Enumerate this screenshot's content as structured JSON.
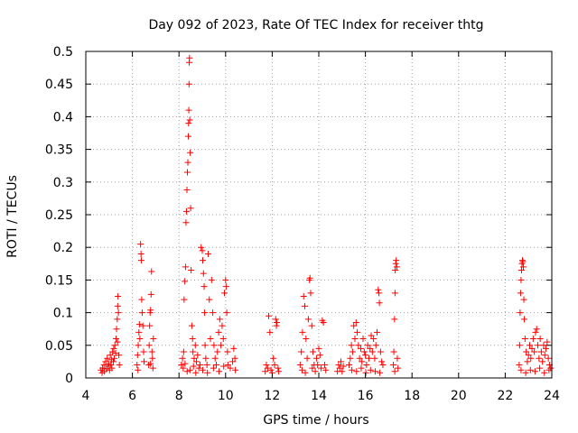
{
  "chart_data": {
    "type": "scatter",
    "title": "Day 092 of 2023, Rate Of TEC Index for receiver thtg",
    "xlabel": "GPS time / hours",
    "ylabel": "ROTI / TECUs",
    "xlim": [
      4,
      24
    ],
    "ylim": [
      0,
      0.5
    ],
    "xticks": [
      4,
      6,
      8,
      10,
      12,
      14,
      16,
      18,
      20,
      22,
      24
    ],
    "xtick_labels": [
      "4",
      "6",
      "8",
      "10",
      "12",
      "14",
      "16",
      "18",
      "20",
      "22",
      "24"
    ],
    "yticks": [
      0,
      0.05,
      0.1,
      0.15,
      0.2,
      0.25,
      0.3,
      0.35,
      0.4,
      0.45,
      0.5
    ],
    "ytick_labels": [
      "0",
      "0.05",
      "0.1",
      "0.15",
      "0.2",
      "0.25",
      "0.3",
      "0.35",
      "0.4",
      "0.45",
      "0.5"
    ],
    "grid": true,
    "marker": "+",
    "color": "#ff0000",
    "series": [
      {
        "name": "ROTI",
        "points": [
          [
            4.65,
            0.012
          ],
          [
            4.7,
            0.008
          ],
          [
            4.72,
            0.015
          ],
          [
            4.78,
            0.02
          ],
          [
            4.8,
            0.01
          ],
          [
            4.85,
            0.025
          ],
          [
            4.88,
            0.014
          ],
          [
            4.92,
            0.03
          ],
          [
            4.95,
            0.018
          ],
          [
            4.98,
            0.022
          ],
          [
            5.02,
            0.012
          ],
          [
            5.05,
            0.035
          ],
          [
            5.08,
            0.02
          ],
          [
            5.1,
            0.028
          ],
          [
            5.12,
            0.015
          ],
          [
            5.15,
            0.04
          ],
          [
            5.18,
            0.025
          ],
          [
            5.2,
            0.045
          ],
          [
            5.22,
            0.03
          ],
          [
            5.25,
            0.05
          ],
          [
            5.28,
            0.038
          ],
          [
            5.3,
            0.06
          ],
          [
            5.32,
            0.075
          ],
          [
            5.35,
            0.09
          ],
          [
            5.37,
            0.11
          ],
          [
            5.38,
            0.125
          ],
          [
            5.4,
            0.1
          ],
          [
            5.42,
            0.035
          ],
          [
            5.44,
            0.02
          ],
          [
            5.36,
            0.055
          ],
          [
            6.2,
            0.02
          ],
          [
            6.22,
            0.035
          ],
          [
            6.25,
            0.05
          ],
          [
            6.28,
            0.07
          ],
          [
            6.3,
            0.082
          ],
          [
            6.32,
            0.06
          ],
          [
            6.35,
            0.205
          ],
          [
            6.37,
            0.19
          ],
          [
            6.38,
            0.18
          ],
          [
            6.4,
            0.12
          ],
          [
            6.42,
            0.1
          ],
          [
            6.45,
            0.08
          ],
          [
            6.48,
            0.04
          ],
          [
            6.5,
            0.025
          ],
          [
            6.24,
            0.012
          ],
          [
            6.7,
            0.02
          ],
          [
            6.72,
            0.05
          ],
          [
            6.74,
            0.08
          ],
          [
            6.76,
            0.1
          ],
          [
            6.78,
            0.104
          ],
          [
            6.8,
            0.128
          ],
          [
            6.82,
            0.163
          ],
          [
            6.84,
            0.04
          ],
          [
            6.86,
            0.03
          ],
          [
            6.88,
            0.015
          ],
          [
            6.9,
            0.06
          ],
          [
            6.78,
            0.022
          ],
          [
            8.1,
            0.02
          ],
          [
            8.15,
            0.03
          ],
          [
            8.2,
            0.04
          ],
          [
            8.22,
            0.12
          ],
          [
            8.25,
            0.148
          ],
          [
            8.28,
            0.17
          ],
          [
            8.3,
            0.238
          ],
          [
            8.32,
            0.255
          ],
          [
            8.34,
            0.288
          ],
          [
            8.36,
            0.315
          ],
          [
            8.38,
            0.33
          ],
          [
            8.4,
            0.37
          ],
          [
            8.41,
            0.39
          ],
          [
            8.42,
            0.41
          ],
          [
            8.43,
            0.45
          ],
          [
            8.44,
            0.483
          ],
          [
            8.45,
            0.49
          ],
          [
            8.46,
            0.395
          ],
          [
            8.48,
            0.345
          ],
          [
            8.5,
            0.26
          ],
          [
            8.52,
            0.165
          ],
          [
            8.55,
            0.08
          ],
          [
            8.58,
            0.06
          ],
          [
            8.6,
            0.04
          ],
          [
            8.65,
            0.03
          ],
          [
            8.7,
            0.05
          ],
          [
            8.75,
            0.025
          ],
          [
            8.8,
            0.035
          ],
          [
            8.18,
            0.015
          ],
          [
            8.26,
            0.022
          ],
          [
            8.35,
            0.01
          ],
          [
            8.47,
            0.012
          ],
          [
            8.62,
            0.018
          ],
          [
            8.72,
            0.008
          ],
          [
            8.85,
            0.015
          ],
          [
            8.9,
            0.02
          ],
          [
            8.95,
            0.2
          ],
          [
            9.0,
            0.195
          ],
          [
            9.02,
            0.18
          ],
          [
            9.05,
            0.16
          ],
          [
            9.08,
            0.14
          ],
          [
            9.1,
            0.1
          ],
          [
            9.12,
            0.05
          ],
          [
            9.15,
            0.03
          ],
          [
            9.2,
            0.02
          ],
          [
            9.25,
            0.19
          ],
          [
            9.3,
            0.12
          ],
          [
            9.35,
            0.06
          ],
          [
            9.4,
            0.15
          ],
          [
            9.45,
            0.1
          ],
          [
            9.5,
            0.05
          ],
          [
            9.55,
            0.03
          ],
          [
            9.6,
            0.02
          ],
          [
            9.65,
            0.04
          ],
          [
            9.7,
            0.07
          ],
          [
            9.75,
            0.09
          ],
          [
            9.8,
            0.05
          ],
          [
            9.85,
            0.08
          ],
          [
            9.9,
            0.06
          ],
          [
            9.95,
            0.13
          ],
          [
            10.0,
            0.15
          ],
          [
            10.02,
            0.14
          ],
          [
            10.05,
            0.1
          ],
          [
            10.08,
            0.04
          ],
          [
            10.1,
            0.02
          ],
          [
            10.2,
            0.015
          ],
          [
            10.3,
            0.025
          ],
          [
            10.35,
            0.045
          ],
          [
            10.4,
            0.03
          ],
          [
            10.42,
            0.012
          ],
          [
            9.02,
            0.012
          ],
          [
            9.22,
            0.008
          ],
          [
            9.48,
            0.015
          ],
          [
            9.72,
            0.01
          ],
          [
            9.92,
            0.018
          ],
          [
            11.7,
            0.01
          ],
          [
            11.75,
            0.02
          ],
          [
            11.8,
            0.015
          ],
          [
            11.85,
            0.095
          ],
          [
            11.9,
            0.07
          ],
          [
            11.95,
            0.012
          ],
          [
            12.0,
            0.008
          ],
          [
            12.05,
            0.03
          ],
          [
            12.1,
            0.02
          ],
          [
            12.15,
            0.09
          ],
          [
            12.18,
            0.08
          ],
          [
            12.2,
            0.085
          ],
          [
            12.25,
            0.015
          ],
          [
            12.28,
            0.01
          ],
          [
            13.2,
            0.02
          ],
          [
            13.25,
            0.04
          ],
          [
            13.3,
            0.07
          ],
          [
            13.35,
            0.125
          ],
          [
            13.4,
            0.11
          ],
          [
            13.45,
            0.06
          ],
          [
            13.5,
            0.03
          ],
          [
            13.55,
            0.09
          ],
          [
            13.6,
            0.15
          ],
          [
            13.62,
            0.153
          ],
          [
            13.65,
            0.13
          ],
          [
            13.7,
            0.08
          ],
          [
            13.75,
            0.04
          ],
          [
            13.8,
            0.02
          ],
          [
            13.85,
            0.01
          ],
          [
            13.9,
            0.03
          ],
          [
            13.95,
            0.02
          ],
          [
            14.0,
            0.045
          ],
          [
            14.05,
            0.035
          ],
          [
            14.1,
            0.015
          ],
          [
            14.15,
            0.088
          ],
          [
            14.2,
            0.085
          ],
          [
            14.25,
            0.02
          ],
          [
            14.3,
            0.012
          ],
          [
            13.28,
            0.012
          ],
          [
            13.42,
            0.008
          ],
          [
            13.72,
            0.015
          ],
          [
            14.8,
            0.01
          ],
          [
            14.85,
            0.02
          ],
          [
            14.9,
            0.015
          ],
          [
            14.95,
            0.025
          ],
          [
            15.0,
            0.01
          ],
          [
            15.05,
            0.018
          ],
          [
            15.3,
            0.02
          ],
          [
            15.35,
            0.03
          ],
          [
            15.4,
            0.05
          ],
          [
            15.45,
            0.04
          ],
          [
            15.5,
            0.08
          ],
          [
            15.55,
            0.06
          ],
          [
            15.6,
            0.085
          ],
          [
            15.65,
            0.07
          ],
          [
            15.7,
            0.05
          ],
          [
            15.75,
            0.03
          ],
          [
            15.8,
            0.045
          ],
          [
            15.85,
            0.025
          ],
          [
            15.9,
            0.06
          ],
          [
            15.95,
            0.04
          ],
          [
            16.0,
            0.035
          ],
          [
            16.05,
            0.02
          ],
          [
            16.1,
            0.05
          ],
          [
            16.15,
            0.03
          ],
          [
            16.2,
            0.045
          ],
          [
            16.25,
            0.065
          ],
          [
            16.3,
            0.04
          ],
          [
            16.35,
            0.06
          ],
          [
            16.4,
            0.03
          ],
          [
            16.45,
            0.05
          ],
          [
            16.5,
            0.07
          ],
          [
            16.55,
            0.135
          ],
          [
            16.58,
            0.13
          ],
          [
            16.6,
            0.115
          ],
          [
            16.65,
            0.04
          ],
          [
            16.7,
            0.025
          ],
          [
            16.75,
            0.02
          ],
          [
            15.42,
            0.012
          ],
          [
            15.62,
            0.01
          ],
          [
            15.82,
            0.015
          ],
          [
            16.02,
            0.008
          ],
          [
            16.22,
            0.012
          ],
          [
            16.42,
            0.01
          ],
          [
            16.62,
            0.008
          ],
          [
            17.2,
            0.02
          ],
          [
            17.22,
            0.04
          ],
          [
            17.25,
            0.09
          ],
          [
            17.27,
            0.13
          ],
          [
            17.28,
            0.165
          ],
          [
            17.3,
            0.175
          ],
          [
            17.32,
            0.18
          ],
          [
            17.35,
            0.17
          ],
          [
            17.37,
            0.03
          ],
          [
            17.4,
            0.015
          ],
          [
            17.26,
            0.01
          ],
          [
            22.6,
            0.02
          ],
          [
            22.62,
            0.05
          ],
          [
            22.64,
            0.1
          ],
          [
            22.66,
            0.13
          ],
          [
            22.68,
            0.15
          ],
          [
            22.7,
            0.165
          ],
          [
            22.72,
            0.175
          ],
          [
            22.74,
            0.18
          ],
          [
            22.76,
            0.178
          ],
          [
            22.78,
            0.17
          ],
          [
            22.8,
            0.12
          ],
          [
            22.82,
            0.09
          ],
          [
            22.85,
            0.06
          ],
          [
            22.9,
            0.04
          ],
          [
            22.95,
            0.025
          ],
          [
            23.0,
            0.035
          ],
          [
            23.05,
            0.05
          ],
          [
            23.1,
            0.03
          ],
          [
            23.15,
            0.045
          ],
          [
            23.2,
            0.06
          ],
          [
            23.25,
            0.04
          ],
          [
            23.3,
            0.07
          ],
          [
            23.35,
            0.075
          ],
          [
            23.4,
            0.05
          ],
          [
            23.45,
            0.03
          ],
          [
            23.5,
            0.06
          ],
          [
            23.55,
            0.04
          ],
          [
            23.6,
            0.025
          ],
          [
            23.65,
            0.05
          ],
          [
            23.7,
            0.035
          ],
          [
            23.75,
            0.045
          ],
          [
            23.8,
            0.055
          ],
          [
            23.85,
            0.03
          ],
          [
            23.9,
            0.02
          ],
          [
            23.95,
            0.015
          ],
          [
            22.68,
            0.012
          ],
          [
            22.88,
            0.008
          ],
          [
            23.08,
            0.012
          ],
          [
            23.28,
            0.01
          ],
          [
            23.48,
            0.015
          ],
          [
            23.68,
            0.008
          ],
          [
            23.88,
            0.012
          ]
        ]
      }
    ]
  }
}
